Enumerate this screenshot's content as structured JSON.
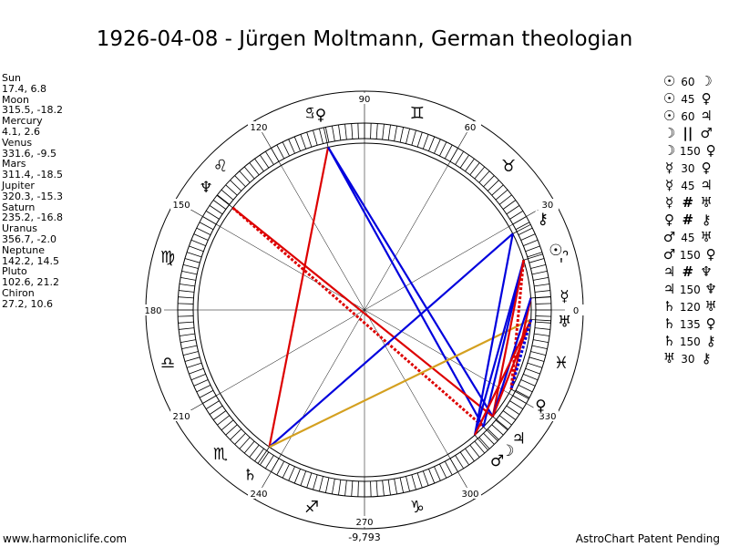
{
  "title": "1926-04-08 - Jürgen Moltmann, German theologian",
  "footer": {
    "left": "www.harmoniclife.com",
    "right": "AstroChart Patent Pending",
    "bottom_value": "-9,793"
  },
  "planets": [
    {
      "name": "Sun",
      "coords": "17.4, 6.8",
      "glyph": "☉",
      "lon": 17.4
    },
    {
      "name": "Moon",
      "coords": "315.5, -18.2",
      "glyph": "☽",
      "lon": 315.5
    },
    {
      "name": "Mercury",
      "coords": "4.1, 2.6",
      "glyph": "☿",
      "lon": 4.1
    },
    {
      "name": "Venus",
      "coords": "331.6, -9.5",
      "glyph": "♀",
      "lon": 331.6
    },
    {
      "name": "Mars",
      "coords": "311.4, -18.5",
      "glyph": "♂",
      "lon": 311.4
    },
    {
      "name": "Jupiter",
      "coords": "320.3, -15.3",
      "glyph": "♃",
      "lon": 320.3
    },
    {
      "name": "Saturn",
      "coords": "235.2, -16.8",
      "glyph": "♄",
      "lon": 235.2
    },
    {
      "name": "Uranus",
      "coords": "356.7, -2.0",
      "glyph": "♅",
      "lon": 356.7
    },
    {
      "name": "Neptune",
      "coords": "142.2, 14.5",
      "glyph": "♆",
      "lon": 142.2
    },
    {
      "name": "Pluto",
      "coords": "102.6, 21.2",
      "glyph": "♀",
      "lon": 102.6
    },
    {
      "name": "Chiron",
      "coords": "27.2, 10.6",
      "glyph": "⚷",
      "lon": 27.2
    }
  ],
  "degree_labels": [
    {
      "text": "90",
      "deg": 90
    },
    {
      "text": "60",
      "deg": 60
    },
    {
      "text": "30",
      "deg": 30
    },
    {
      "text": "0",
      "deg": 0
    },
    {
      "text": "330",
      "deg": 330
    },
    {
      "text": "300",
      "deg": 300
    },
    {
      "text": "270",
      "deg": 270
    },
    {
      "text": "240",
      "deg": 240
    },
    {
      "text": "210",
      "deg": 210
    },
    {
      "text": "180",
      "deg": 180
    },
    {
      "text": "150",
      "deg": 150
    },
    {
      "text": "120",
      "deg": 120
    }
  ],
  "signs": [
    {
      "glyph": "♈",
      "deg": 15
    },
    {
      "glyph": "♉",
      "deg": 45
    },
    {
      "glyph": "♊",
      "deg": 75
    },
    {
      "glyph": "♋",
      "deg": 105
    },
    {
      "glyph": "♌",
      "deg": 135
    },
    {
      "glyph": "♍",
      "deg": 165
    },
    {
      "glyph": "♎",
      "deg": 195
    },
    {
      "glyph": "♏",
      "deg": 225
    },
    {
      "glyph": "♐",
      "deg": 255
    },
    {
      "glyph": "♑",
      "deg": 285
    },
    {
      "glyph": "♒",
      "deg": 315
    },
    {
      "glyph": "♓",
      "deg": 345
    }
  ],
  "aspect_lines": [
    {
      "from": "Pluto",
      "to": "Saturn",
      "color": "#dd0000",
      "dashed": false
    },
    {
      "from": "Pluto",
      "to": "Jupiter",
      "color": "#0000dd",
      "dashed": false
    },
    {
      "from": "Pluto",
      "to": "Moon",
      "color": "#0000dd",
      "dashed": false
    },
    {
      "from": "Neptune",
      "to": "Jupiter",
      "color": "#dd0000",
      "dashed": false
    },
    {
      "from": "Neptune",
      "to": "Moon",
      "color": "#dd0000",
      "dashed": true
    },
    {
      "from": "Saturn",
      "to": "Chiron",
      "color": "#0000dd",
      "dashed": false
    },
    {
      "from": "Saturn",
      "to": "Uranus",
      "color": "#d4a020",
      "dashed": false
    },
    {
      "from": "Chiron",
      "to": "Mars",
      "color": "#0000dd",
      "dashed": false
    },
    {
      "from": "Sun",
      "to": "Moon",
      "color": "#0000dd",
      "dashed": false
    },
    {
      "from": "Sun",
      "to": "Mars",
      "color": "#0000dd",
      "dashed": false
    },
    {
      "from": "Sun",
      "to": "Venus",
      "color": "#dd0000",
      "dashed": true
    },
    {
      "from": "Sun",
      "to": "Jupiter",
      "color": "#dd0000",
      "dashed": false
    },
    {
      "from": "Mercury",
      "to": "Venus",
      "color": "#dd0000",
      "dashed": false
    },
    {
      "from": "Mercury",
      "to": "Jupiter",
      "color": "#0000dd",
      "dashed": false
    },
    {
      "from": "Uranus",
      "to": "Jupiter",
      "color": "#dd0000",
      "dashed": false
    },
    {
      "from": "Uranus",
      "to": "Mars",
      "color": "#dd0000",
      "dashed": false
    },
    {
      "from": "Uranus",
      "to": "Venus",
      "color": "#0000dd",
      "dashed": true
    }
  ],
  "aspect_list": [
    {
      "g1": "☉",
      "aspect": "60",
      "g2": "☽"
    },
    {
      "g1": "☉",
      "aspect": "45",
      "g2": "♀"
    },
    {
      "g1": "☉",
      "aspect": "60",
      "g2": "♃"
    },
    {
      "g1": "☽",
      "aspect": "||",
      "g2": "♂"
    },
    {
      "g1": "☽",
      "aspect": "150",
      "g2": "♀"
    },
    {
      "g1": "☿",
      "aspect": "30",
      "g2": "♀"
    },
    {
      "g1": "☿",
      "aspect": "45",
      "g2": "♃"
    },
    {
      "g1": "☿",
      "aspect": "#",
      "g2": "♅"
    },
    {
      "g1": "♀",
      "aspect": "#",
      "g2": "⚷"
    },
    {
      "g1": "♂",
      "aspect": "45",
      "g2": "♅"
    },
    {
      "g1": "♂",
      "aspect": "150",
      "g2": "♀"
    },
    {
      "g1": "♃",
      "aspect": "#",
      "g2": "♆"
    },
    {
      "g1": "♃",
      "aspect": "150",
      "g2": "♆"
    },
    {
      "g1": "♄",
      "aspect": "120",
      "g2": "♅"
    },
    {
      "g1": "♄",
      "aspect": "135",
      "g2": "♀"
    },
    {
      "g1": "♄",
      "aspect": "150",
      "g2": "⚷"
    },
    {
      "g1": "♅",
      "aspect": "30",
      "g2": "⚷"
    }
  ]
}
